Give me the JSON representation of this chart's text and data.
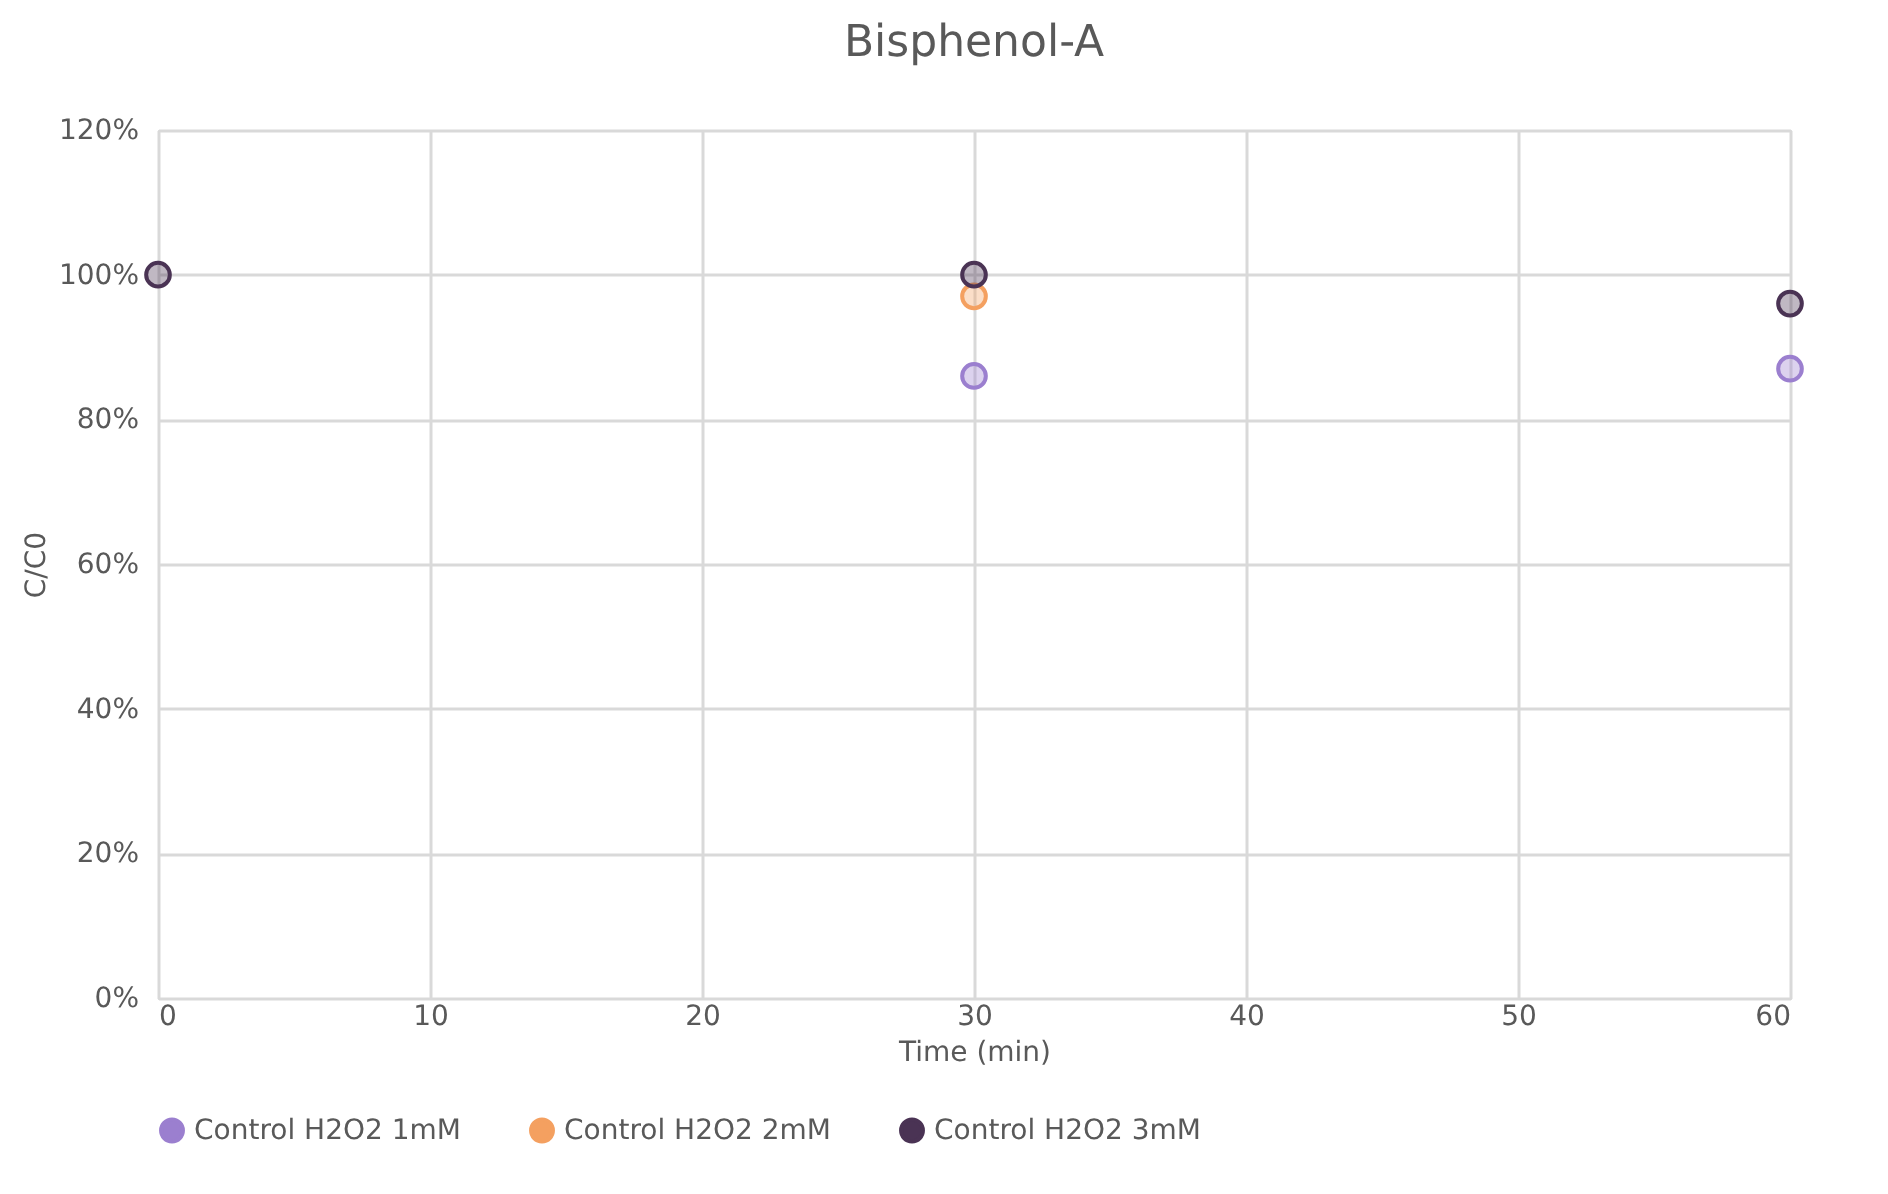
{
  "chart_data": {
    "type": "scatter",
    "title": "Bisphenol-A",
    "xlabel": "Time (min)",
    "ylabel": "C/C0",
    "x": [
      0,
      30,
      60
    ],
    "series": [
      {
        "name": "Control H2O2 1mM",
        "color": "#9b7fcf",
        "values": [
          null,
          86,
          87
        ]
      },
      {
        "name": "Control H2O2 2mM",
        "color": "#f4a060",
        "values": [
          null,
          97,
          null
        ]
      },
      {
        "name": "Control H2O2 3mM",
        "color": "#4a3354",
        "values": [
          100,
          100,
          96
        ]
      }
    ],
    "xlim": [
      0,
      60
    ],
    "xticks": [
      0,
      10,
      20,
      30,
      40,
      50,
      60
    ],
    "ylim": [
      0,
      120
    ],
    "yticks": [
      {
        "value": 0,
        "label": "0%"
      },
      {
        "value": 20,
        "label": "20%"
      },
      {
        "value": 40,
        "label": "40%"
      },
      {
        "value": 60,
        "label": "60%"
      },
      {
        "value": 80,
        "label": "80%"
      },
      {
        "value": 100,
        "label": "100%"
      },
      {
        "value": 120,
        "label": "120%"
      }
    ],
    "grid": true,
    "legend": "bottom",
    "marker": "circle"
  }
}
